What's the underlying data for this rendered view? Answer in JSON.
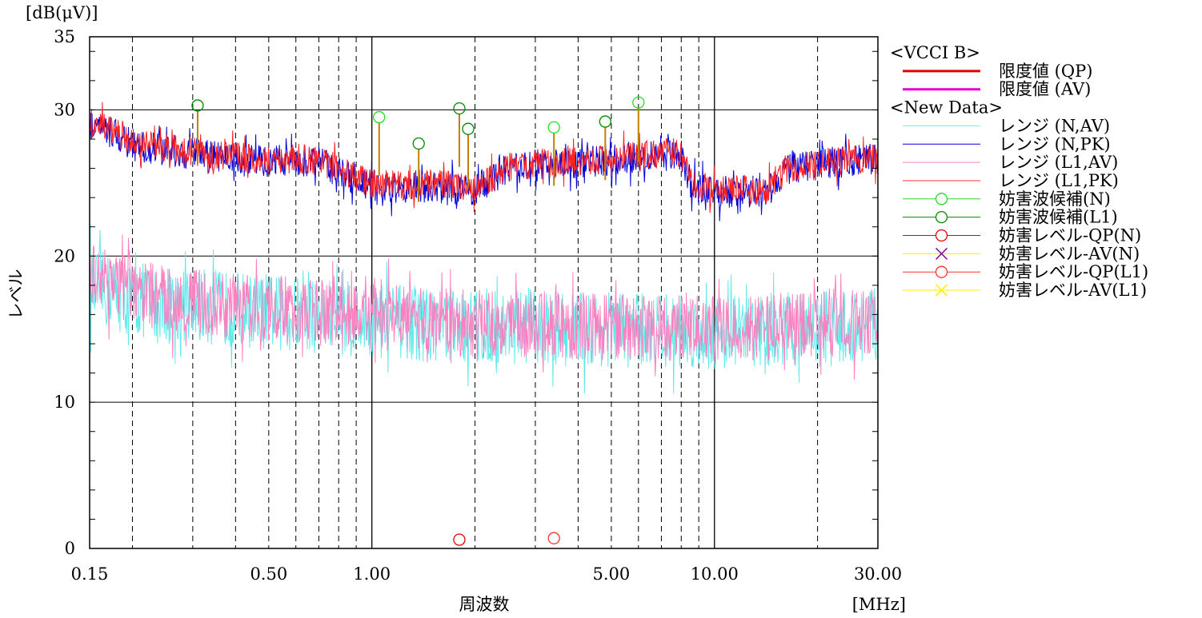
{
  "chart_data": {
    "type": "line",
    "title": "",
    "xlabel": "周波数",
    "xunit": "[MHz]",
    "ylabel": "レベル",
    "yunit": "[dB(μV)]",
    "x_scale": "log",
    "xlim": [
      0.15,
      30.0
    ],
    "ylim": [
      0,
      35
    ],
    "y_ticks": [
      0,
      10,
      20,
      30,
      35
    ],
    "y_tick_labels": [
      "0",
      "10",
      "20",
      "30",
      "35"
    ],
    "x_tick_labels": [
      {
        "value": 0.15,
        "label": "0.15"
      },
      {
        "value": 0.5,
        "label": "0.50"
      },
      {
        "value": 1.0,
        "label": "1.00"
      },
      {
        "value": 5.0,
        "label": "5.00"
      },
      {
        "value": 10.0,
        "label": "10.00"
      },
      {
        "value": 30.0,
        "label": "30.00"
      }
    ],
    "x_dashed_gridlines": [
      0.2,
      0.3,
      0.4,
      0.5,
      0.6,
      0.7,
      0.8,
      0.9,
      2,
      3,
      4,
      5,
      6,
      7,
      8,
      9,
      20
    ],
    "x_solid_gridlines": [
      1,
      10
    ],
    "y_gridlines": [
      10,
      20,
      30
    ],
    "legend_position": "right",
    "legend": [
      {
        "kind": "header",
        "label": "<VCCI B>"
      },
      {
        "kind": "line",
        "label": "限度値 (QP)",
        "color": "#e00000",
        "width": 3
      },
      {
        "kind": "line",
        "label": "限度値 (AV)",
        "color": "#e000d0",
        "width": 3
      },
      {
        "kind": "header",
        "label": "<New Data>"
      },
      {
        "kind": "line",
        "label": "レンジ (N,AV)",
        "color": "#70f0f0",
        "width": 1
      },
      {
        "kind": "line",
        "label": "レンジ (N,PK)",
        "color": "#0000d8",
        "width": 1
      },
      {
        "kind": "line",
        "label": "レンジ (L1,AV)",
        "color": "#ff7fc0",
        "width": 1
      },
      {
        "kind": "line",
        "label": "レンジ (L1,PK)",
        "color": "#ff3030",
        "width": 1
      },
      {
        "kind": "circle",
        "label": "妨害波候補(N)",
        "color": "#22dd22",
        "width": 1
      },
      {
        "kind": "circle",
        "label": "妨害波候補(L1)",
        "color": "#008800",
        "width": 1
      },
      {
        "kind": "circle",
        "label": "妨害レベル-QP(N)",
        "color": "#e00000",
        "width": 1
      },
      {
        "kind": "cross",
        "label": "妨害レベル-AV(N)",
        "color": "#ffee00",
        "marker": "#8000a0",
        "width": 1
      },
      {
        "kind": "circle",
        "label": "妨害レベル-QP(L1)",
        "color": "#ff3030",
        "width": 1
      },
      {
        "kind": "cross",
        "label": "妨害レベル-AV(L1)",
        "color": "#ffee00",
        "marker": "#ffee00",
        "width": 1
      }
    ],
    "series": [
      {
        "name": "レンジ (N,PK)",
        "color": "#0000d8",
        "x": [
          0.15,
          0.17,
          0.19,
          0.2,
          0.25,
          0.3,
          0.4,
          0.5,
          0.6,
          0.7,
          0.8,
          0.9,
          1.0,
          1.2,
          1.5,
          1.8,
          2.0,
          2.5,
          3.0,
          4.0,
          5.0,
          6.0,
          7.0,
          8.0,
          8.5,
          10.0,
          12.0,
          14.0,
          16.0,
          20.0,
          25.0,
          30.0
        ],
        "y": [
          29.0,
          28.5,
          28.0,
          27.5,
          27.3,
          27.0,
          26.7,
          26.5,
          26.6,
          26.4,
          25.8,
          25.3,
          24.8,
          24.5,
          24.8,
          24.6,
          24.5,
          26.0,
          26.2,
          26.4,
          26.6,
          26.8,
          26.9,
          27.0,
          25.0,
          24.2,
          24.5,
          24.3,
          25.8,
          26.3,
          26.5,
          26.6
        ],
        "noise": 1.1
      },
      {
        "name": "レンジ (L1,PK)",
        "color": "#ff2020",
        "x": [
          0.15,
          0.17,
          0.19,
          0.2,
          0.25,
          0.3,
          0.4,
          0.5,
          0.6,
          0.7,
          0.8,
          0.9,
          1.0,
          1.2,
          1.5,
          1.8,
          2.0,
          2.5,
          3.0,
          4.0,
          5.0,
          6.0,
          7.0,
          8.0,
          8.5,
          10.0,
          12.0,
          14.0,
          16.0,
          20.0,
          25.0,
          30.0
        ],
        "y": [
          29.2,
          28.6,
          28.2,
          27.8,
          27.4,
          27.1,
          26.8,
          26.6,
          26.7,
          26.5,
          25.9,
          25.4,
          25.0,
          24.8,
          25.0,
          24.8,
          24.6,
          26.1,
          26.3,
          26.5,
          26.7,
          26.9,
          27.0,
          27.1,
          25.1,
          24.4,
          24.6,
          24.4,
          25.9,
          26.4,
          26.6,
          26.7
        ],
        "noise": 1.0
      },
      {
        "name": "レンジ (N,AV)",
        "color": "#60eaea",
        "x": [
          0.15,
          0.2,
          0.3,
          0.5,
          1.0,
          2.0,
          5.0,
          10.0,
          20.0,
          30.0
        ],
        "y": [
          18.0,
          17.0,
          16.6,
          16.2,
          15.6,
          15.2,
          15.0,
          14.8,
          15.0,
          15.2
        ],
        "noise": 2.6
      },
      {
        "name": "レンジ (L1,AV)",
        "color": "#ff7fc0",
        "x": [
          0.15,
          0.2,
          0.3,
          0.5,
          1.0,
          2.0,
          5.0,
          10.0,
          20.0,
          30.0
        ],
        "y": [
          19.0,
          17.5,
          16.8,
          16.4,
          15.8,
          15.4,
          15.2,
          15.0,
          15.3,
          15.6
        ],
        "noise": 2.3
      }
    ],
    "candidates_N": [
      {
        "x": 1.05,
        "y": 29.5
      },
      {
        "x": 3.4,
        "y": 28.8
      },
      {
        "x": 6.0,
        "y": 30.5
      }
    ],
    "candidates_L1": [
      {
        "x": 0.31,
        "y": 30.3
      },
      {
        "x": 1.37,
        "y": 27.7
      },
      {
        "x": 1.8,
        "y": 30.1
      },
      {
        "x": 1.91,
        "y": 28.7
      },
      {
        "x": 4.8,
        "y": 29.2
      }
    ],
    "qp_N": [
      {
        "x": 1.8,
        "y": 0.6
      }
    ],
    "qp_L1": [
      {
        "x": 3.4,
        "y": 0.7
      }
    ]
  }
}
